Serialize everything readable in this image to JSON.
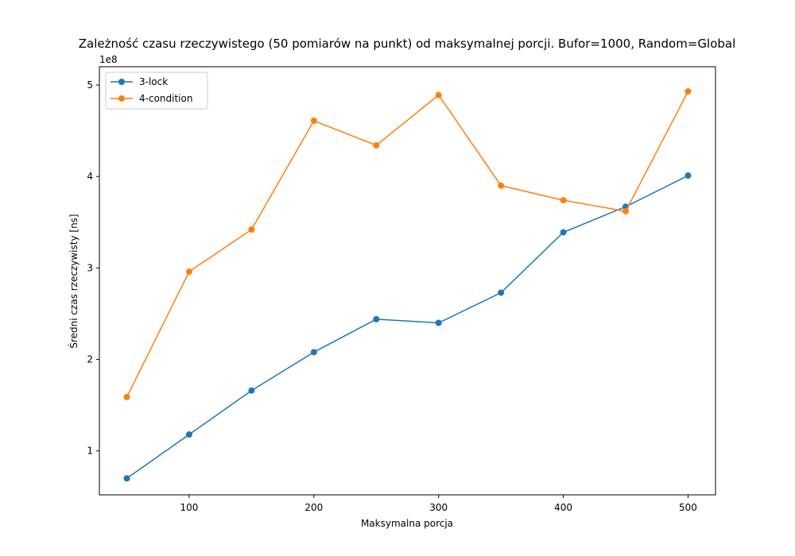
{
  "chart_data": {
    "type": "line",
    "title": "Zależność czasu rzeczywistego (50 pomiarów na punkt) od maksymalnej porcji. Bufor=1000, Random=Global",
    "xlabel": "Maksymalna porcja",
    "ylabel": "Średni czas rzeczywisty [ns]",
    "y_offset_label": "1e8",
    "x": [
      50,
      100,
      150,
      200,
      250,
      300,
      350,
      400,
      450,
      500
    ],
    "xlim": [
      28,
      522
    ],
    "ylim": [
      0.52,
      5.2
    ],
    "xticks": [
      100,
      200,
      300,
      400,
      500
    ],
    "yticks": [
      1,
      2,
      3,
      4,
      5
    ],
    "grid": false,
    "legend_position": "top-left",
    "series": [
      {
        "name": "3-lock",
        "color": "#1f77b4",
        "values": [
          0.7,
          1.18,
          1.66,
          2.08,
          2.44,
          2.4,
          2.73,
          3.39,
          3.67,
          4.01
        ]
      },
      {
        "name": "4-condition",
        "color": "#ff7f0e",
        "values": [
          1.59,
          2.96,
          3.42,
          4.61,
          4.34,
          4.89,
          3.9,
          3.74,
          3.62,
          4.93
        ]
      }
    ]
  }
}
